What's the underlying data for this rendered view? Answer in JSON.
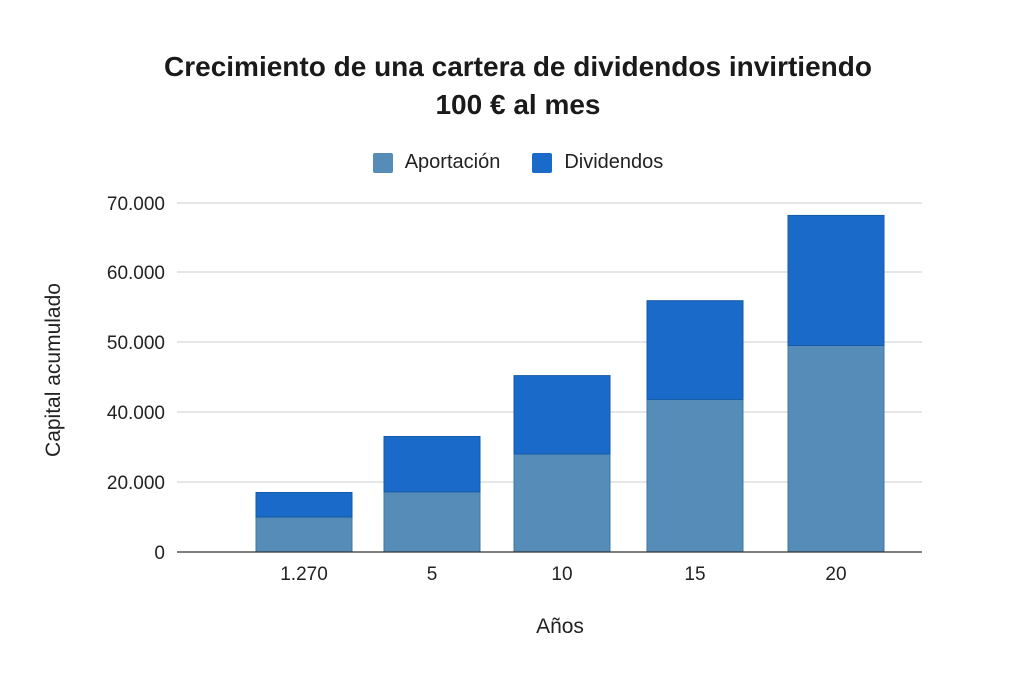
{
  "chart_data": {
    "type": "bar",
    "stacked": true,
    "title": [
      "Crecimiento de una cartera de dividendos invirtiendo",
      "100 € al mes"
    ],
    "xlabel": "Años",
    "ylabel": "Capital acumulado",
    "categories": [
      "1.270",
      "5",
      "10",
      "15",
      "20"
    ],
    "series": [
      {
        "name": "Aportación",
        "color": "#558CB8",
        "values": [
          10000,
          17200,
          28000,
          41800,
          49500
        ]
      },
      {
        "name": "Dividendos",
        "color": "#1A6BC9",
        "values": [
          7000,
          15800,
          17200,
          14100,
          18700
        ]
      }
    ],
    "ylim": [
      0,
      70000
    ],
    "yticks": [
      0,
      20000,
      40000,
      50000,
      60000,
      70000
    ],
    "ytick_labels": [
      "0",
      "20.000",
      "40.000",
      "50.000",
      "60.000",
      "70.000"
    ],
    "gridlines": [
      20000,
      40000,
      50000,
      60000,
      70000
    ],
    "grid": true,
    "legend_position": "top"
  }
}
